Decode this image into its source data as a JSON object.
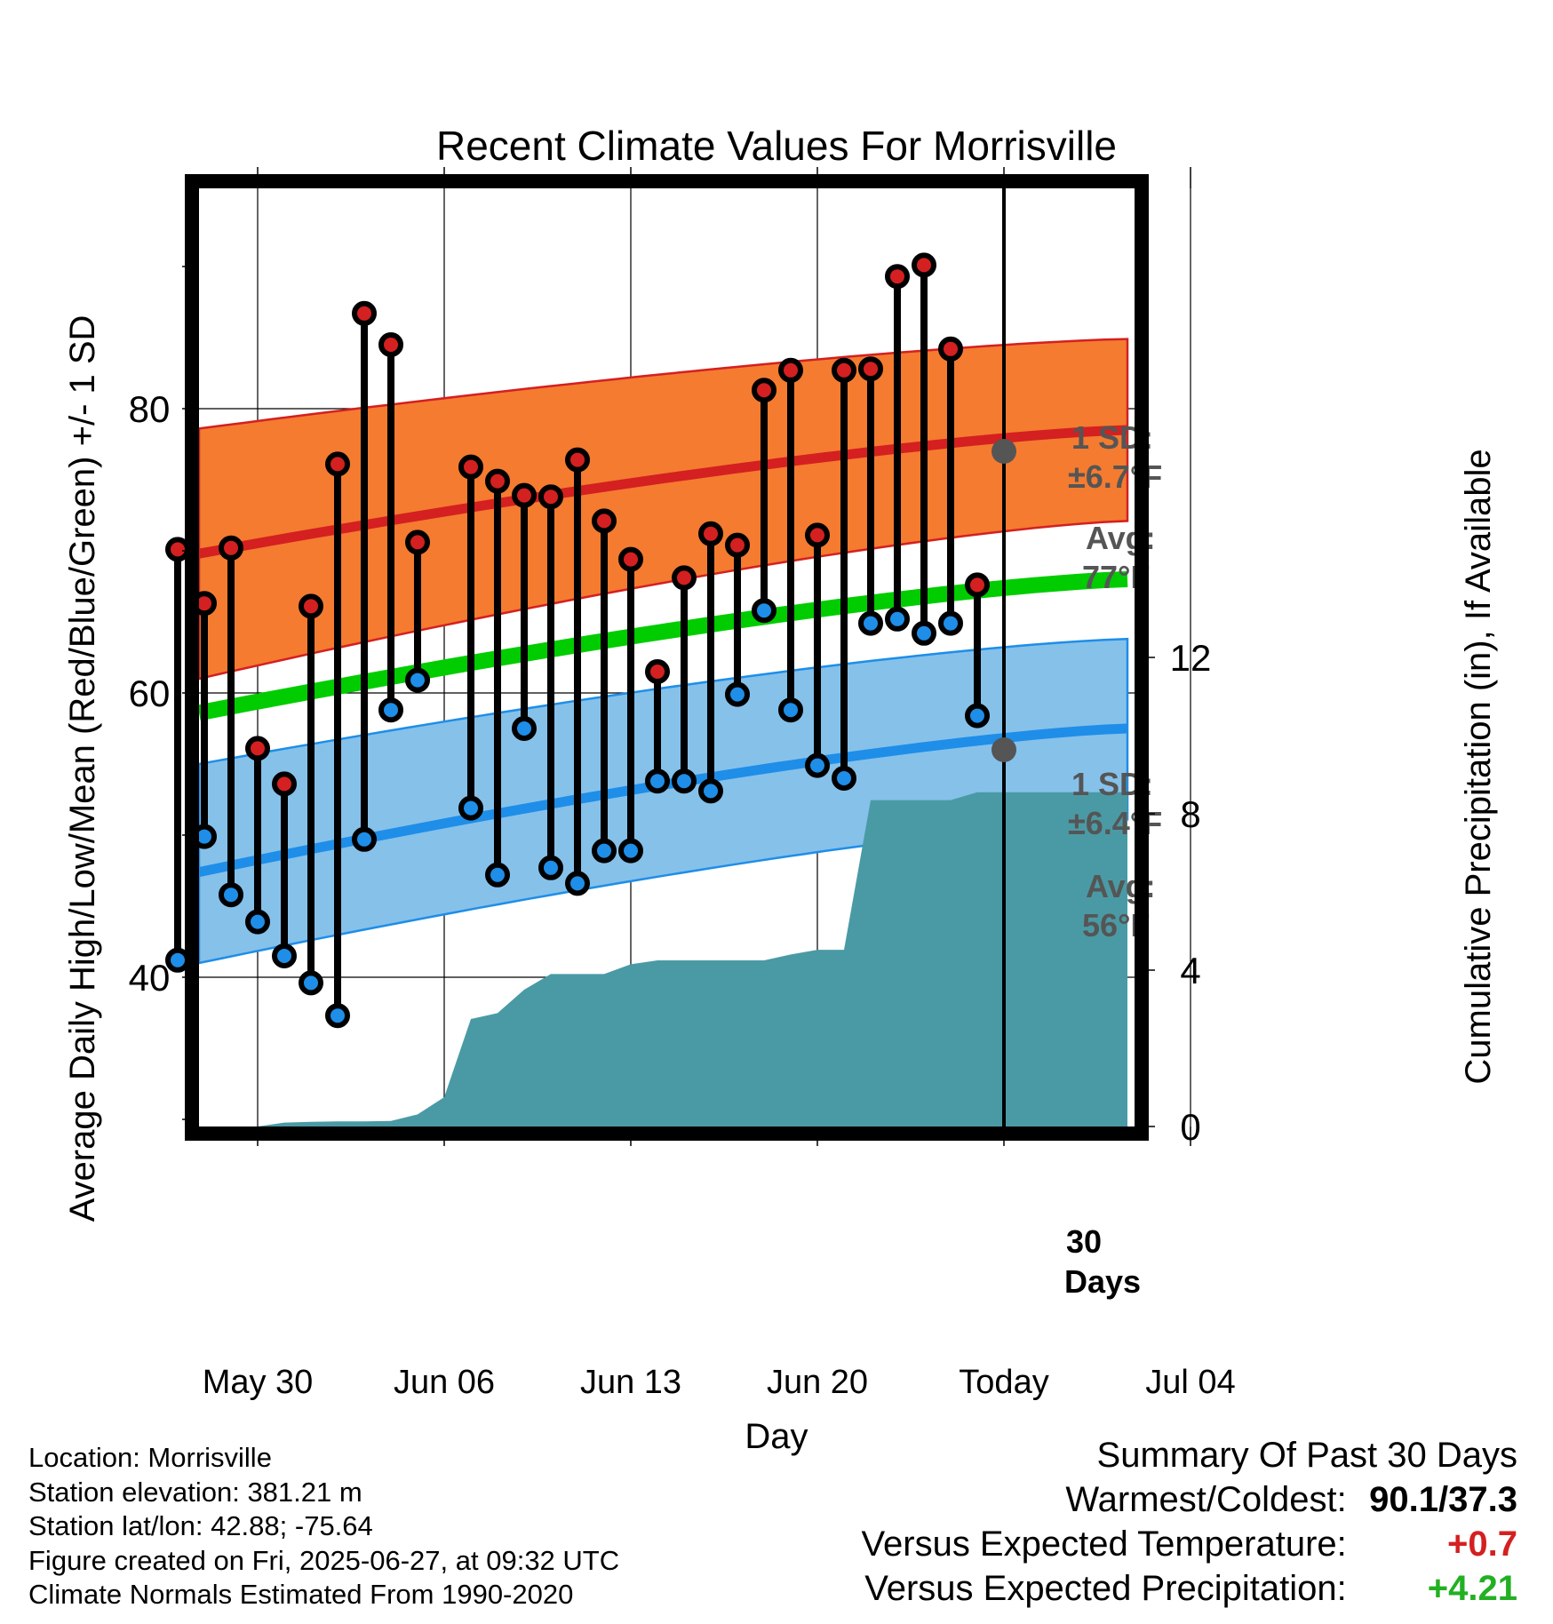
{
  "chart_data": {
    "type": "line",
    "title": "Recent Climate Values For Morrisville",
    "xlabel": "Day",
    "ylabel": "Average Daily High/Low/Mean (Red/Blue/Green) +/- 1 SD",
    "y2label": "Cumulative Precipitation (in), If Available",
    "ylim": [
      29.5,
      95.5
    ],
    "y_ticks": [
      40,
      60,
      80
    ],
    "y2lim": [
      0,
      24
    ],
    "y2_ticks": [
      0,
      4,
      8,
      12
    ],
    "x_tick_labels": [
      "May 30",
      "Jun 06",
      "Jun 13",
      "Jun 20",
      "Today",
      "Jul 04"
    ],
    "today_label": "30 Days",
    "grid": true,
    "days": [
      "May 27",
      "May 28",
      "May 29",
      "May 30",
      "May 31",
      "Jun 01",
      "Jun 02",
      "Jun 03",
      "Jun 04",
      "Jun 05",
      "Jun 06",
      "Jun 07",
      "Jun 08",
      "Jun 09",
      "Jun 10",
      "Jun 11",
      "Jun 12",
      "Jun 13",
      "Jun 14",
      "Jun 15",
      "Jun 16",
      "Jun 17",
      "Jun 18",
      "Jun 19",
      "Jun 20",
      "Jun 21",
      "Jun 22",
      "Jun 23",
      "Jun 24",
      "Jun 25",
      "Jun 26"
    ],
    "series": [
      {
        "name": "High",
        "color": "#d42020",
        "values": [
          70.1,
          66.3,
          70.2,
          56.1,
          53.6,
          66.1,
          76.1,
          86.7,
          84.5,
          70.6,
          null,
          75.9,
          74.9,
          73.9,
          73.8,
          76.4,
          72.1,
          69.4,
          61.5,
          68.1,
          71.2,
          70.4,
          81.3,
          82.7,
          71.1,
          82.7,
          82.8,
          89.3,
          90.1,
          84.2,
          67.6
        ]
      },
      {
        "name": "Low",
        "color": "#1e8ee8",
        "values": [
          41.2,
          49.9,
          45.8,
          43.9,
          41.5,
          39.6,
          37.3,
          49.7,
          58.8,
          60.9,
          null,
          51.9,
          47.2,
          57.5,
          47.7,
          46.6,
          48.9,
          48.9,
          53.8,
          53.8,
          53.1,
          59.9,
          65.8,
          58.8,
          54.9,
          54.0,
          64.9,
          65.2,
          64.2,
          64.9,
          58.4
        ]
      }
    ],
    "normals": {
      "x_range": [
        "May 27",
        "Jul 06"
      ],
      "high_avg": [
        69.8,
        78.5
      ],
      "low_avg": [
        47.4,
        57.5
      ],
      "mean_avg": [
        58.6,
        68.0
      ],
      "high_sd_band": [
        [
          61.0,
          78.6
        ],
        [
          72.1,
          84.9
        ]
      ],
      "low_sd_band": [
        [
          41.0,
          55.0
        ],
        [
          51.1,
          63.8
        ]
      ]
    },
    "precip_cumulative": {
      "days": [
        "May 27",
        "May 28",
        "May 29",
        "May 30",
        "May 31",
        "Jun 01",
        "Jun 02",
        "Jun 03",
        "Jun 04",
        "Jun 05",
        "Jun 06",
        "Jun 07",
        "Jun 08",
        "Jun 09",
        "Jun 10",
        "Jun 11",
        "Jun 12",
        "Jun 13",
        "Jun 14",
        "Jun 15",
        "Jun 16",
        "Jun 17",
        "Jun 18",
        "Jun 19",
        "Jun 20",
        "Jun 21",
        "Jun 22",
        "Jun 23",
        "Jun 24",
        "Jun 25",
        "Jun 26"
      ],
      "values": [
        0,
        0,
        0,
        0,
        0.1,
        0.12,
        0.13,
        0.13,
        0.14,
        0.31,
        0.75,
        2.75,
        2.9,
        3.5,
        3.9,
        3.9,
        3.9,
        4.15,
        4.25,
        4.25,
        4.25,
        4.25,
        4.25,
        4.4,
        4.52,
        4.52,
        8.35,
        8.35,
        8.35,
        8.35,
        8.55
      ],
      "forward_value": 8.55
    },
    "today_annotations": {
      "high": {
        "sd_text": "1 SD:",
        "sd_value": "±6.7°F",
        "avg_text": "Avg:",
        "avg_value": "77°F",
        "avg": 77
      },
      "low": {
        "sd_text": "1 SD:",
        "sd_value": "±6.4°F",
        "avg_text": "Avg:",
        "avg_value": "56°F",
        "avg": 56
      }
    }
  },
  "meta": {
    "location": "Location: Morrisville",
    "elevation": "Station elevation: 381.21 m",
    "latlon": "Station lat/lon: 42.88; -75.64",
    "created": "Figure created on Fri, 2025-06-27, at 09:32 UTC",
    "normals": "Climate Normals Estimated From 1990-2020"
  },
  "summary": {
    "title": "Summary Of Past 30 Days",
    "warm_label": "Warmest/Coldest:",
    "warm_value": "90.1/37.3",
    "temp_label": "Versus Expected Temperature:",
    "temp_value": "+0.7",
    "prcp_label": "Versus Expected Precipitation:",
    "prcp_value": "+4.21"
  }
}
